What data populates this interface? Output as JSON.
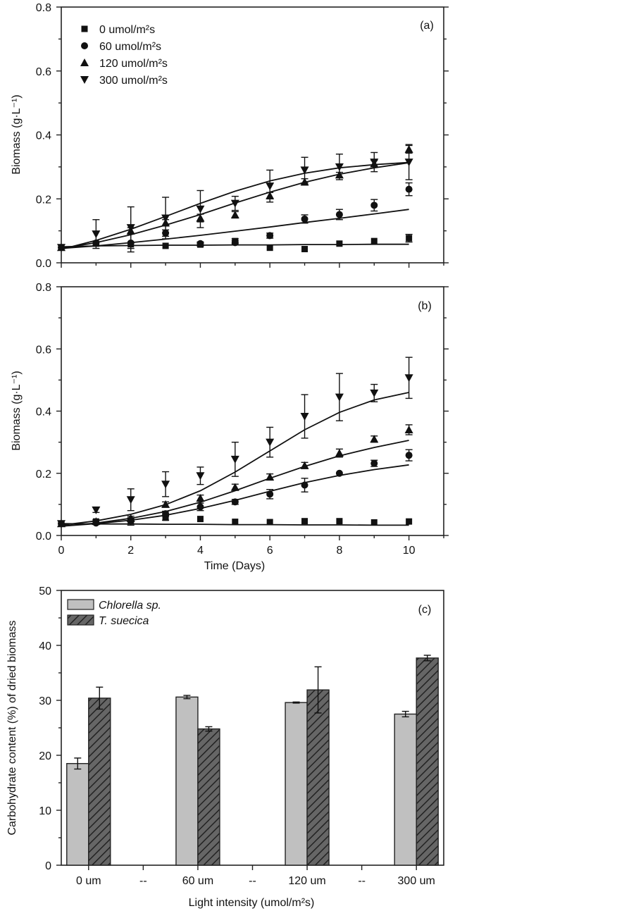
{
  "chart_data": [
    {
      "type": "scatter",
      "panel_label": "(a)",
      "ylabel": "Biomass (g·L⁻¹)",
      "xlabel": "",
      "xlim": [
        0,
        11
      ],
      "ylim": [
        0,
        0.8
      ],
      "yticks": [
        "0.0",
        "0.2",
        "0.4",
        "0.6",
        "0.8"
      ],
      "yticks_values": [
        0,
        0.2,
        0.4,
        0.6,
        0.8
      ],
      "xticks_values": [
        0,
        2,
        4,
        6,
        8,
        10
      ],
      "legend_position": "top-left",
      "series": [
        {
          "name": "0 umol/m²s",
          "marker": "square",
          "x": [
            0,
            1,
            2,
            3,
            4,
            5,
            6,
            7,
            8,
            9,
            10
          ],
          "y": [
            0.048,
            0.06,
            0.058,
            0.053,
            0.057,
            0.068,
            0.047,
            0.043,
            0.06,
            0.068,
            0.077
          ],
          "err": [
            0.003,
            0.004,
            0.004,
            0.004,
            0.005,
            0.007,
            0.004,
            0.003,
            0.004,
            0.004,
            0.012
          ],
          "fit": [
            0.05,
            0.053,
            0.054,
            0.055,
            0.055,
            0.056,
            0.056,
            0.057,
            0.057,
            0.058,
            0.058
          ]
        },
        {
          "name": "60 umol/m²s",
          "marker": "circle",
          "x": [
            0,
            1,
            2,
            3,
            4,
            5,
            6,
            7,
            8,
            9,
            10
          ],
          "y": [
            0.048,
            0.062,
            0.062,
            0.093,
            0.06,
            0.063,
            0.085,
            0.137,
            0.151,
            0.18,
            0.23
          ],
          "err": [
            0.003,
            0.004,
            0.028,
            0.01,
            0.005,
            0.006,
            0.008,
            0.013,
            0.016,
            0.018,
            0.02
          ],
          "fit": [
            0.045,
            0.053,
            0.063,
            0.074,
            0.086,
            0.099,
            0.112,
            0.126,
            0.139,
            0.153,
            0.167
          ]
        },
        {
          "name": "120 umol/m²s",
          "marker": "triangle-up",
          "x": [
            0,
            1,
            2,
            3,
            4,
            5,
            6,
            7,
            8,
            9,
            10
          ],
          "y": [
            0.048,
            0.062,
            0.1,
            0.125,
            0.14,
            0.15,
            0.21,
            0.253,
            0.275,
            0.31,
            0.355
          ],
          "err": [
            0.003,
            0.004,
            0.01,
            0.01,
            0.012,
            0.01,
            0.01,
            0.01,
            0.008,
            0.01,
            0.012
          ],
          "fit": [
            0.045,
            0.063,
            0.088,
            0.118,
            0.151,
            0.187,
            0.221,
            0.252,
            0.277,
            0.297,
            0.313
          ]
        },
        {
          "name": "300 umol/m²s",
          "marker": "triangle-down",
          "x": [
            0,
            1,
            2,
            3,
            4,
            5,
            6,
            7,
            8,
            9,
            10
          ],
          "y": [
            0.048,
            0.09,
            0.11,
            0.14,
            0.168,
            0.186,
            0.24,
            0.29,
            0.3,
            0.315,
            0.315
          ],
          "err": [
            0.003,
            0.045,
            0.065,
            0.065,
            0.058,
            0.022,
            0.05,
            0.04,
            0.04,
            0.03,
            0.055
          ],
          "fit": [
            0.042,
            0.07,
            0.105,
            0.145,
            0.186,
            0.224,
            0.256,
            0.28,
            0.297,
            0.307,
            0.314
          ]
        }
      ]
    },
    {
      "type": "scatter",
      "panel_label": "(b)",
      "ylabel": "Biomass (g·L⁻¹)",
      "xlabel": "Time (Days)",
      "xlim": [
        0,
        11
      ],
      "ylim": [
        0,
        0.8
      ],
      "yticks": [
        "0.0",
        "0.2",
        "0.4",
        "0.6",
        "0.8"
      ],
      "yticks_values": [
        0,
        0.2,
        0.4,
        0.6,
        0.8
      ],
      "xticks": [
        "0",
        "2",
        "4",
        "6",
        "8",
        "10"
      ],
      "xticks_values": [
        0,
        2,
        4,
        6,
        8,
        10
      ],
      "series": [
        {
          "name": "0 umol/m²s",
          "marker": "square",
          "x": [
            0,
            1,
            2,
            3,
            4,
            5,
            6,
            7,
            8,
            9,
            10
          ],
          "y": [
            0.038,
            0.045,
            0.045,
            0.057,
            0.053,
            0.044,
            0.043,
            0.046,
            0.046,
            0.042,
            0.045
          ],
          "err": [
            0.003,
            0.005,
            0.012,
            0.008,
            0.004,
            0.003,
            0.003,
            0.003,
            0.003,
            0.003,
            0.003
          ],
          "fit": [
            0.038,
            0.037,
            0.037,
            0.036,
            0.036,
            0.035,
            0.035,
            0.034,
            0.034,
            0.033,
            0.033
          ]
        },
        {
          "name": "60 umol/m²s",
          "marker": "circle",
          "x": [
            0,
            1,
            2,
            3,
            4,
            5,
            6,
            7,
            8,
            9,
            10
          ],
          "y": [
            0.038,
            0.04,
            0.05,
            0.07,
            0.092,
            0.108,
            0.133,
            0.162,
            0.2,
            0.232,
            0.258
          ],
          "err": [
            0.003,
            0.003,
            0.005,
            0.008,
            0.012,
            0.008,
            0.015,
            0.022,
            0.004,
            0.01,
            0.018
          ],
          "fit": [
            0.03,
            0.038,
            0.049,
            0.065,
            0.087,
            0.113,
            0.142,
            0.17,
            0.193,
            0.212,
            0.227
          ]
        },
        {
          "name": "120 umol/m²s",
          "marker": "triangle-up",
          "x": [
            0,
            1,
            2,
            3,
            4,
            5,
            6,
            7,
            8,
            9,
            10
          ],
          "y": [
            0.038,
            0.045,
            0.055,
            0.1,
            0.12,
            0.155,
            0.188,
            0.225,
            0.265,
            0.31,
            0.34
          ],
          "err": [
            0.003,
            0.005,
            0.007,
            0.008,
            0.01,
            0.01,
            0.01,
            0.01,
            0.013,
            0.01,
            0.016
          ],
          "fit": [
            0.03,
            0.04,
            0.055,
            0.077,
            0.107,
            0.144,
            0.184,
            0.222,
            0.256,
            0.283,
            0.306
          ]
        },
        {
          "name": "300 umol/m²s",
          "marker": "triangle-down",
          "x": [
            0,
            1,
            2,
            3,
            4,
            5,
            6,
            7,
            8,
            9,
            10
          ],
          "y": [
            0.038,
            0.082,
            0.115,
            0.165,
            0.192,
            0.245,
            0.3,
            0.383,
            0.445,
            0.458,
            0.507
          ],
          "err": [
            0.003,
            0.008,
            0.035,
            0.04,
            0.028,
            0.055,
            0.048,
            0.07,
            0.076,
            0.028,
            0.066
          ],
          "fit": [
            0.033,
            0.047,
            0.068,
            0.099,
            0.144,
            0.204,
            0.272,
            0.34,
            0.396,
            0.436,
            0.46
          ]
        }
      ]
    },
    {
      "type": "bar",
      "panel_label": "(c)",
      "ylabel": "Carbohydrate content (%) of dried biomass",
      "xlabel": "Light intensity (umol/m²s)",
      "ylim": [
        0,
        50
      ],
      "yticks": [
        "0",
        "10",
        "20",
        "30",
        "40",
        "50"
      ],
      "yticks_values": [
        0,
        10,
        20,
        30,
        40,
        50
      ],
      "categories": [
        "0 um",
        "--",
        "60 um",
        "--",
        "120 um",
        "--",
        "300 um"
      ],
      "legend_position": "top-left",
      "series": [
        {
          "name": "Chlorella sp.",
          "fill": "#c0c0c0",
          "pattern": "solid",
          "values": [
            18.5,
            null,
            30.6,
            null,
            29.6,
            null,
            27.5
          ],
          "err": [
            1.0,
            null,
            0.3,
            null,
            0.1,
            null,
            0.5
          ]
        },
        {
          "name": "T. suecica",
          "fill": "#666666",
          "pattern": "hatched",
          "values": [
            30.4,
            null,
            24.8,
            null,
            31.9,
            null,
            37.7
          ],
          "err": [
            2.0,
            null,
            0.4,
            null,
            4.2,
            null,
            0.5
          ]
        }
      ]
    }
  ],
  "colors": {
    "ink": "#111111",
    "bar_light": "#c0c0c0",
    "bar_dark": "#666666"
  }
}
